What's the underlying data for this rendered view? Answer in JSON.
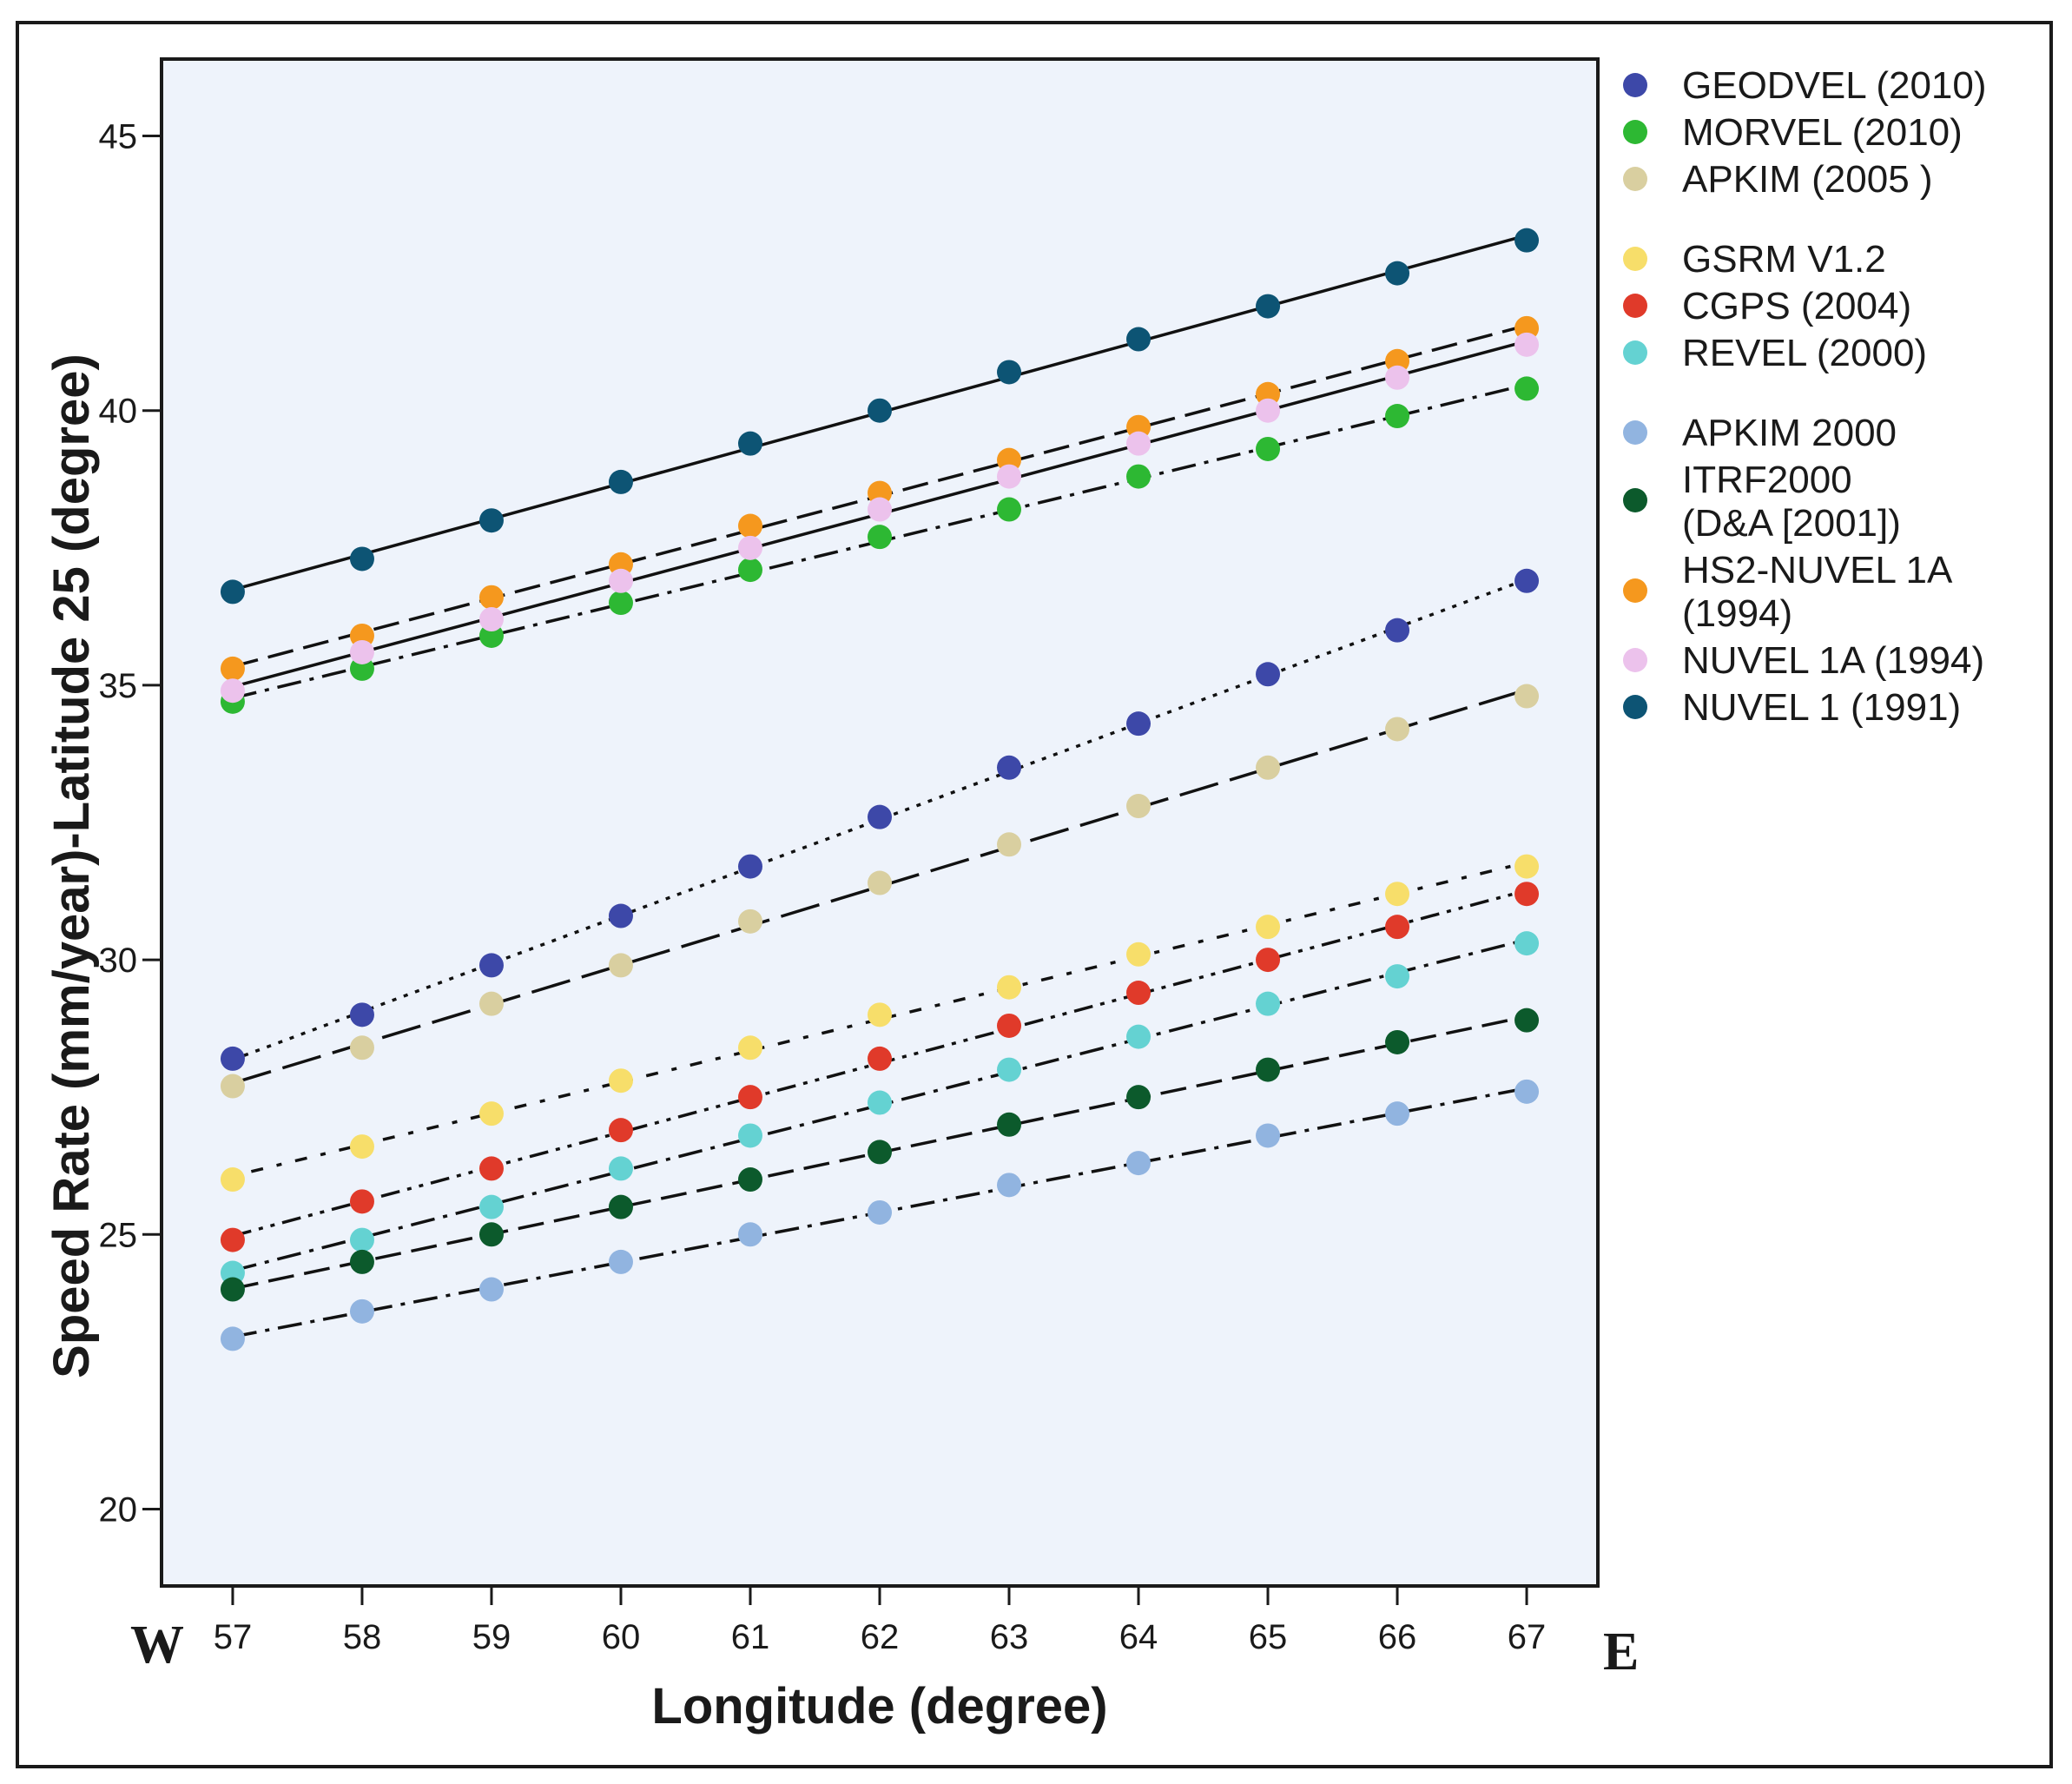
{
  "chart_data": {
    "type": "scatter",
    "xlabel": "Longitude (degree)",
    "ylabel": "Speed Rate (mm/year)-Latitude 25 (degree)",
    "x_left_label": "W",
    "x_right_label": "E",
    "xlim": [
      56.45,
      67.55
    ],
    "ylim": [
      18.6,
      46.4
    ],
    "x": [
      57,
      58,
      59,
      60,
      61,
      62,
      63,
      64,
      65,
      66,
      67
    ],
    "x_ticks": [
      57,
      58,
      59,
      60,
      61,
      62,
      63,
      64,
      65,
      66,
      67
    ],
    "y_ticks": [
      20,
      25,
      30,
      35,
      40,
      45
    ],
    "background": "#eef3fb",
    "series": [
      {
        "name": "GEODVEL (2010)",
        "legend_lines": [
          "GEODVEL (2010)"
        ],
        "color": "#3d48a8",
        "line": "dotted",
        "values": [
          28.2,
          29.0,
          29.9,
          30.8,
          31.7,
          32.6,
          33.5,
          34.3,
          35.2,
          36.0,
          36.9
        ]
      },
      {
        "name": "MORVEL (2010)",
        "legend_lines": [
          "MORVEL (2010)"
        ],
        "color": "#2db833",
        "line": "dashdot",
        "values": [
          34.7,
          35.3,
          35.9,
          36.5,
          37.1,
          37.7,
          38.2,
          38.8,
          39.3,
          39.9,
          40.4
        ]
      },
      {
        "name": "APKIM (2005 )",
        "legend_lines": [
          "APKIM (2005 )"
        ],
        "color": "#d9cfa0",
        "line": "longdash",
        "values": [
          27.7,
          28.4,
          29.2,
          29.9,
          30.7,
          31.4,
          32.1,
          32.8,
          33.5,
          34.2,
          34.8
        ]
      },
      {
        "name": "GSRM V1.2",
        "legend_lines": [
          "GSRM V1.2"
        ],
        "color": "#f7de6a",
        "line": "dotdash",
        "values": [
          26.0,
          26.6,
          27.2,
          27.8,
          28.4,
          29.0,
          29.5,
          30.1,
          30.6,
          31.2,
          31.7
        ]
      },
      {
        "name": "CGPS (2004)",
        "legend_lines": [
          "CGPS (2004)"
        ],
        "color": "#e03a2a",
        "line": "dashdotdot",
        "values": [
          24.9,
          25.6,
          26.2,
          26.9,
          27.5,
          28.2,
          28.8,
          29.4,
          30.0,
          30.6,
          31.2
        ]
      },
      {
        "name": "REVEL (2000)",
        "legend_lines": [
          "REVEL (2000)"
        ],
        "color": "#64d2d2",
        "line": "dashdot",
        "values": [
          24.3,
          24.9,
          25.5,
          26.2,
          26.8,
          27.4,
          28.0,
          28.6,
          29.2,
          29.7,
          30.3
        ]
      },
      {
        "name": "APKIM 2000",
        "legend_lines": [
          "APKIM 2000"
        ],
        "color": "#91b4e0",
        "line": "dashdot",
        "values": [
          23.1,
          23.6,
          24.0,
          24.5,
          25.0,
          25.4,
          25.9,
          26.3,
          26.8,
          27.2,
          27.6
        ]
      },
      {
        "name": "ITRF2000 (D&A [2001])",
        "legend_lines": [
          "ITRF2000",
          "(D&A [2001])"
        ],
        "color": "#0c5a2c",
        "line": "dash",
        "values": [
          24.0,
          24.5,
          25.0,
          25.5,
          26.0,
          26.5,
          27.0,
          27.5,
          28.0,
          28.5,
          28.9
        ]
      },
      {
        "name": "HS2-NUVEL 1A (1994)",
        "legend_lines": [
          "HS2-NUVEL 1A",
          "(1994)"
        ],
        "color": "#f5981e",
        "line": "dash",
        "values": [
          35.3,
          35.9,
          36.6,
          37.2,
          37.9,
          38.5,
          39.1,
          39.7,
          40.3,
          40.9,
          41.5
        ]
      },
      {
        "name": "NUVEL 1A (1994)",
        "legend_lines": [
          "NUVEL 1A (1994)"
        ],
        "color": "#ecc2ec",
        "line": "solid",
        "values": [
          34.9,
          35.6,
          36.2,
          36.9,
          37.5,
          38.2,
          38.8,
          39.4,
          40.0,
          40.6,
          41.2
        ]
      },
      {
        "name": "NUVEL 1 (1991)",
        "legend_lines": [
          "NUVEL 1 (1991)"
        ],
        "color": "#0d5474",
        "line": "solid",
        "values": [
          36.7,
          37.3,
          38.0,
          38.7,
          39.4,
          40.0,
          40.7,
          41.3,
          41.9,
          42.5,
          43.1
        ]
      }
    ]
  }
}
